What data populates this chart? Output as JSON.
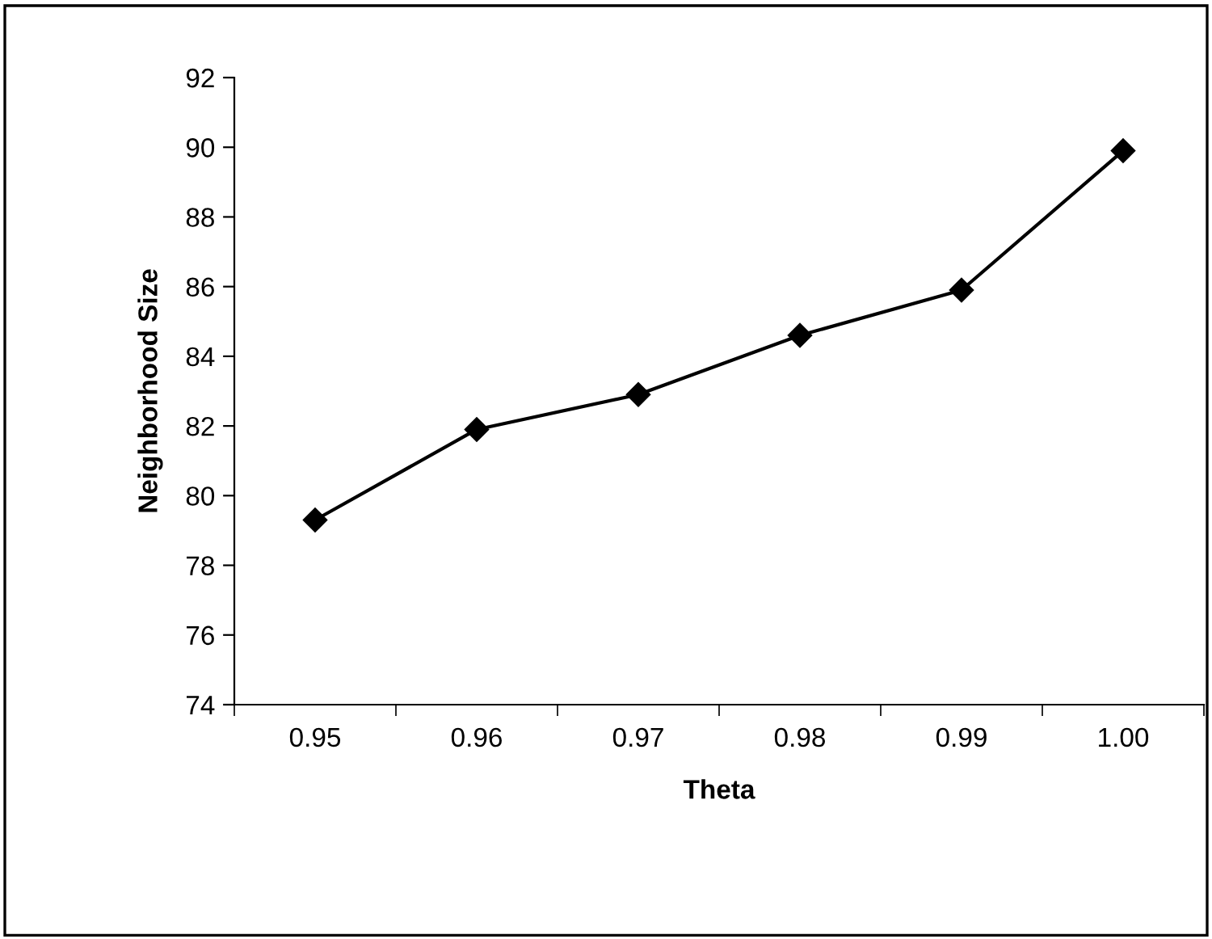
{
  "chart_data": {
    "type": "line",
    "xlabel": "Theta",
    "ylabel": "Neighborhood Size",
    "categories": [
      "0.95",
      "0.96",
      "0.97",
      "0.98",
      "0.99",
      "1.00"
    ],
    "values": [
      79.3,
      81.9,
      82.9,
      84.6,
      85.9,
      89.9
    ],
    "color": "#000000",
    "marker": "diamond",
    "line_style": "solid",
    "ylim": [
      74,
      92
    ],
    "yticks": [
      74,
      76,
      78,
      80,
      82,
      84,
      86,
      88,
      90,
      92
    ],
    "grid": false,
    "legend": false
  }
}
